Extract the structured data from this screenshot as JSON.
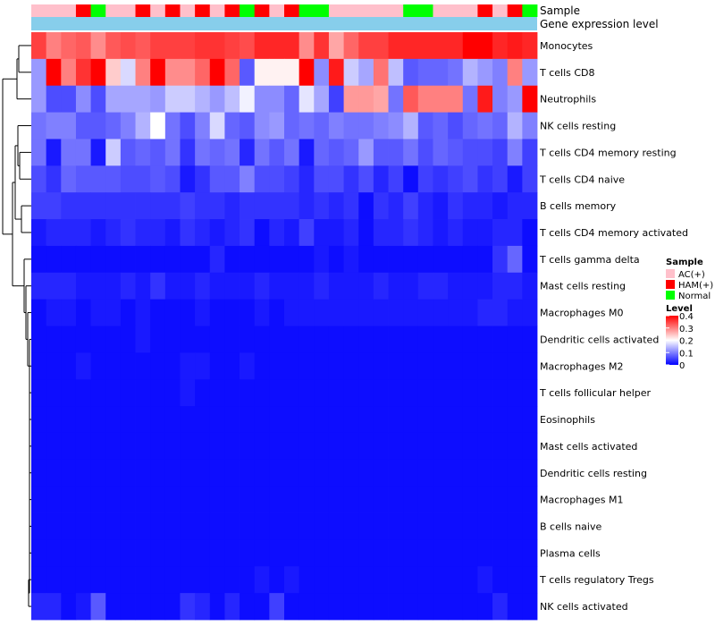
{
  "chart_data": {
    "type": "heatmap",
    "title": "",
    "annotation_tracks": [
      "Sample",
      "Gene expression level"
    ],
    "rows": [
      "Monocytes",
      "T cells CD8",
      "Neutrophils",
      "NK cells resting",
      "T cells CD4 memory resting",
      "T cells CD4 naive",
      "B cells memory",
      "T cells CD4 memory activated",
      "T cells gamma delta",
      "Mast cells resting",
      "Macrophages M0",
      "Dendritic cells activated",
      "Macrophages M2",
      "T cells follicular helper",
      "Eosinophils",
      "Mast cells activated",
      "Dendritic cells resting",
      "Macrophages M1",
      "B cells naive",
      "Plasma cells",
      "T cells regulatory  Tregs",
      "NK cells activated"
    ],
    "sample_groups": [
      "AC",
      "AC",
      "AC",
      "HAM",
      "Normal",
      "AC",
      "AC",
      "HAM",
      "AC",
      "HAM",
      "AC",
      "HAM",
      "AC",
      "HAM",
      "Normal",
      "HAM",
      "AC",
      "HAM",
      "Normal",
      "Normal",
      "AC",
      "AC",
      "AC",
      "AC",
      "AC",
      "Normal",
      "Normal",
      "AC",
      "AC",
      "AC",
      "HAM",
      "AC",
      "HAM",
      "Normal"
    ],
    "values": [
      [
        0.35,
        0.3,
        0.32,
        0.33,
        0.29,
        0.33,
        0.34,
        0.33,
        0.35,
        0.35,
        0.35,
        0.36,
        0.36,
        0.35,
        0.34,
        0.37,
        0.37,
        0.37,
        0.29,
        0.36,
        0.27,
        0.32,
        0.35,
        0.35,
        0.37,
        0.37,
        0.37,
        0.37,
        0.37,
        0.4,
        0.4,
        0.37,
        0.38,
        0.37
      ],
      [
        0.12,
        0.4,
        0.3,
        0.36,
        0.4,
        0.24,
        0.17,
        0.3,
        0.4,
        0.29,
        0.29,
        0.32,
        0.4,
        0.32,
        0.07,
        0.21,
        0.21,
        0.21,
        0.4,
        0.11,
        0.38,
        0.16,
        0.13,
        0.31,
        0.15,
        0.07,
        0.08,
        0.08,
        0.09,
        0.14,
        0.12,
        0.1,
        0.3,
        0.12
      ],
      [
        0.12,
        0.06,
        0.06,
        0.11,
        0.06,
        0.13,
        0.13,
        0.13,
        0.12,
        0.16,
        0.16,
        0.14,
        0.12,
        0.15,
        0.19,
        0.11,
        0.11,
        0.08,
        0.18,
        0.13,
        0.05,
        0.28,
        0.28,
        0.27,
        0.09,
        0.33,
        0.3,
        0.3,
        0.3,
        0.09,
        0.38,
        0.1,
        0.12,
        0.4
      ],
      [
        0.09,
        0.1,
        0.1,
        0.07,
        0.07,
        0.08,
        0.1,
        0.14,
        0.2,
        0.09,
        0.06,
        0.1,
        0.17,
        0.08,
        0.07,
        0.11,
        0.12,
        0.08,
        0.09,
        0.08,
        0.1,
        0.09,
        0.09,
        0.1,
        0.11,
        0.14,
        0.07,
        0.08,
        0.06,
        0.08,
        0.09,
        0.08,
        0.14,
        0.1
      ],
      [
        0.09,
        0.02,
        0.09,
        0.09,
        0.02,
        0.16,
        0.07,
        0.08,
        0.07,
        0.09,
        0.04,
        0.09,
        0.08,
        0.09,
        0.03,
        0.09,
        0.07,
        0.09,
        0.02,
        0.08,
        0.07,
        0.08,
        0.12,
        0.07,
        0.07,
        0.09,
        0.06,
        0.08,
        0.07,
        0.06,
        0.06,
        0.05,
        0.1,
        0.05
      ],
      [
        0.06,
        0.04,
        0.08,
        0.07,
        0.07,
        0.07,
        0.06,
        0.06,
        0.07,
        0.06,
        0.02,
        0.04,
        0.07,
        0.07,
        0.1,
        0.06,
        0.06,
        0.05,
        0.03,
        0.06,
        0.06,
        0.04,
        0.06,
        0.03,
        0.05,
        0.01,
        0.05,
        0.04,
        0.05,
        0.06,
        0.04,
        0.05,
        0.02,
        0.05
      ],
      [
        0.05,
        0.05,
        0.04,
        0.04,
        0.04,
        0.04,
        0.04,
        0.04,
        0.04,
        0.04,
        0.05,
        0.04,
        0.04,
        0.03,
        0.04,
        0.04,
        0.04,
        0.04,
        0.03,
        0.04,
        0.03,
        0.04,
        0.01,
        0.04,
        0.03,
        0.05,
        0.03,
        0.02,
        0.04,
        0.03,
        0.03,
        0.02,
        0.03,
        0.03
      ],
      [
        0.02,
        0.03,
        0.03,
        0.03,
        0.02,
        0.03,
        0.04,
        0.03,
        0.03,
        0.02,
        0.04,
        0.03,
        0.02,
        0.03,
        0.04,
        0.01,
        0.03,
        0.02,
        0.05,
        0.02,
        0.02,
        0.03,
        0.01,
        0.03,
        0.03,
        0.04,
        0.03,
        0.02,
        0.03,
        0.02,
        0.02,
        0.03,
        0.03,
        0.01
      ],
      [
        0.01,
        0.01,
        0.01,
        0.01,
        0.01,
        0.01,
        0.01,
        0.01,
        0.01,
        0.01,
        0.01,
        0.01,
        0.03,
        0.01,
        0.01,
        0.01,
        0.01,
        0.01,
        0.01,
        0.02,
        0.01,
        0.02,
        0.01,
        0.01,
        0.01,
        0.01,
        0.01,
        0.01,
        0.01,
        0.01,
        0.01,
        0.04,
        0.08,
        0.01
      ],
      [
        0.03,
        0.03,
        0.03,
        0.02,
        0.02,
        0.02,
        0.03,
        0.02,
        0.04,
        0.02,
        0.02,
        0.03,
        0.02,
        0.02,
        0.02,
        0.03,
        0.02,
        0.02,
        0.02,
        0.03,
        0.02,
        0.02,
        0.02,
        0.03,
        0.02,
        0.02,
        0.03,
        0.03,
        0.02,
        0.02,
        0.02,
        0.03,
        0.03,
        0.02
      ],
      [
        0.01,
        0.02,
        0.02,
        0.01,
        0.02,
        0.02,
        0.01,
        0.02,
        0.01,
        0.01,
        0.01,
        0.02,
        0.01,
        0.01,
        0.01,
        0.02,
        0.01,
        0.02,
        0.02,
        0.02,
        0.02,
        0.02,
        0.02,
        0.02,
        0.02,
        0.02,
        0.02,
        0.02,
        0.02,
        0.02,
        0.03,
        0.03,
        0.02,
        0.02
      ],
      [
        0.01,
        0.01,
        0.01,
        0.01,
        0.01,
        0.01,
        0.01,
        0.02,
        0.01,
        0.01,
        0.01,
        0.01,
        0.01,
        0.01,
        0.01,
        0.01,
        0.01,
        0.01,
        0.01,
        0.01,
        0.01,
        0.01,
        0.01,
        0.01,
        0.01,
        0.01,
        0.01,
        0.01,
        0.01,
        0.01,
        0.01,
        0.01,
        0.01,
        0.01
      ],
      [
        0.01,
        0.01,
        0.01,
        0.02,
        0.01,
        0.01,
        0.01,
        0.01,
        0.01,
        0.01,
        0.02,
        0.02,
        0.01,
        0.01,
        0.02,
        0.01,
        0.01,
        0.01,
        0.01,
        0.01,
        0.01,
        0.01,
        0.01,
        0.01,
        0.01,
        0.01,
        0.01,
        0.01,
        0.01,
        0.01,
        0.01,
        0.01,
        0.01,
        0.01
      ],
      [
        0.01,
        0.01,
        0.01,
        0.01,
        0.01,
        0.01,
        0.01,
        0.01,
        0.01,
        0.01,
        0.02,
        0.01,
        0.01,
        0.01,
        0.01,
        0.01,
        0.01,
        0.01,
        0.01,
        0.01,
        0.01,
        0.01,
        0.01,
        0.01,
        0.01,
        0.01,
        0.01,
        0.01,
        0.01,
        0.01,
        0.01,
        0.01,
        0.01,
        0.01
      ],
      [
        0.01,
        0.01,
        0.01,
        0.01,
        0.01,
        0.01,
        0.01,
        0.01,
        0.01,
        0.01,
        0.01,
        0.01,
        0.01,
        0.01,
        0.01,
        0.01,
        0.01,
        0.01,
        0.01,
        0.01,
        0.01,
        0.01,
        0.01,
        0.01,
        0.01,
        0.01,
        0.01,
        0.01,
        0.01,
        0.01,
        0.01,
        0.01,
        0.01,
        0.01
      ],
      [
        0.01,
        0.01,
        0.01,
        0.01,
        0.01,
        0.01,
        0.01,
        0.01,
        0.01,
        0.01,
        0.01,
        0.01,
        0.01,
        0.01,
        0.01,
        0.01,
        0.01,
        0.01,
        0.01,
        0.01,
        0.01,
        0.01,
        0.01,
        0.01,
        0.01,
        0.01,
        0.01,
        0.01,
        0.01,
        0.01,
        0.01,
        0.01,
        0.01,
        0.01
      ],
      [
        0.01,
        0.01,
        0.01,
        0.01,
        0.01,
        0.01,
        0.01,
        0.01,
        0.01,
        0.01,
        0.01,
        0.01,
        0.01,
        0.01,
        0.01,
        0.01,
        0.01,
        0.01,
        0.01,
        0.01,
        0.01,
        0.01,
        0.01,
        0.01,
        0.01,
        0.01,
        0.01,
        0.01,
        0.01,
        0.01,
        0.01,
        0.01,
        0.01,
        0.01
      ],
      [
        0.01,
        0.01,
        0.01,
        0.01,
        0.01,
        0.01,
        0.01,
        0.01,
        0.01,
        0.01,
        0.01,
        0.01,
        0.01,
        0.01,
        0.01,
        0.01,
        0.01,
        0.01,
        0.01,
        0.01,
        0.01,
        0.01,
        0.01,
        0.01,
        0.01,
        0.01,
        0.01,
        0.01,
        0.01,
        0.01,
        0.01,
        0.01,
        0.01,
        0.01
      ],
      [
        0.01,
        0.01,
        0.01,
        0.01,
        0.01,
        0.01,
        0.01,
        0.01,
        0.01,
        0.01,
        0.01,
        0.01,
        0.01,
        0.01,
        0.01,
        0.01,
        0.01,
        0.01,
        0.01,
        0.01,
        0.01,
        0.01,
        0.01,
        0.01,
        0.01,
        0.01,
        0.01,
        0.01,
        0.01,
        0.01,
        0.01,
        0.01,
        0.01,
        0.01
      ],
      [
        0.01,
        0.01,
        0.01,
        0.01,
        0.01,
        0.01,
        0.01,
        0.01,
        0.01,
        0.01,
        0.01,
        0.01,
        0.01,
        0.01,
        0.01,
        0.01,
        0.01,
        0.01,
        0.01,
        0.01,
        0.01,
        0.01,
        0.01,
        0.01,
        0.01,
        0.01,
        0.01,
        0.01,
        0.01,
        0.01,
        0.01,
        0.01,
        0.01,
        0.01
      ],
      [
        0.01,
        0.01,
        0.01,
        0.01,
        0.01,
        0.01,
        0.01,
        0.01,
        0.01,
        0.01,
        0.01,
        0.01,
        0.01,
        0.01,
        0.01,
        0.02,
        0.01,
        0.02,
        0.01,
        0.01,
        0.01,
        0.01,
        0.01,
        0.01,
        0.01,
        0.01,
        0.01,
        0.01,
        0.01,
        0.01,
        0.02,
        0.01,
        0.01,
        0.01
      ],
      [
        0.03,
        0.03,
        0.01,
        0.02,
        0.07,
        0.01,
        0.01,
        0.01,
        0.01,
        0.01,
        0.04,
        0.03,
        0.01,
        0.03,
        0.01,
        0.01,
        0.05,
        0.01,
        0.01,
        0.01,
        0.01,
        0.01,
        0.01,
        0.01,
        0.01,
        0.01,
        0.01,
        0.01,
        0.01,
        0.01,
        0.01,
        0.03,
        0.01,
        0.01
      ]
    ],
    "color_scale": {
      "min": 0,
      "max": 0.4,
      "mid": 0.2,
      "low_color": "#0000ff",
      "mid_color": "#ffffff",
      "high_color": "#ff0000"
    },
    "legend": {
      "sample_title": "Sample",
      "sample_entries": [
        {
          "key": "AC",
          "label": "AC(+)",
          "color": "#ffc0cb"
        },
        {
          "key": "HAM",
          "label": "HAM(+)",
          "color": "#ff0000"
        },
        {
          "key": "Normal",
          "label": "Normal",
          "color": "#00ff00"
        }
      ],
      "level_title": "Level",
      "level_ticks": [
        "0.4",
        "0.3",
        "0.2",
        "0.1",
        "0"
      ],
      "level_tick_values": [
        0.4,
        0.3,
        0.2,
        0.1,
        0
      ]
    },
    "gene_expression_color": "#87ceeb",
    "dendrogram_color": "#000000"
  }
}
